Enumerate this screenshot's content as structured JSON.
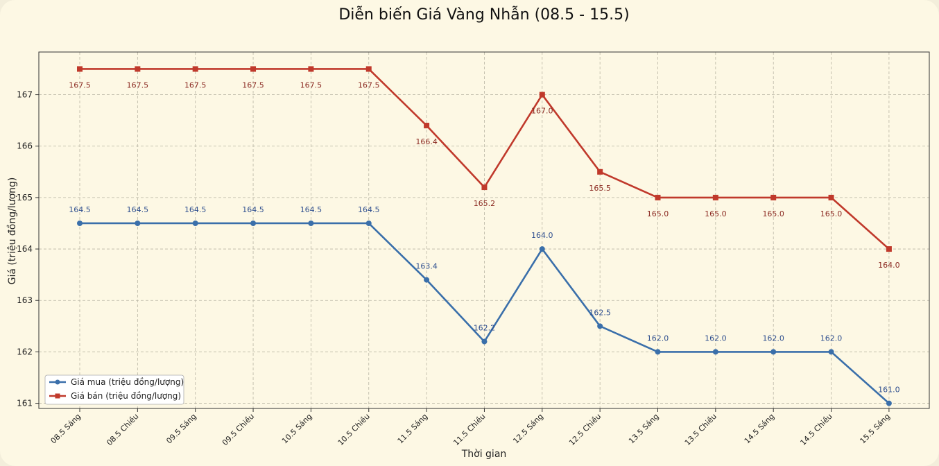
{
  "chart_data": {
    "type": "line",
    "title": "Diễn biến Giá Vàng Nhẫn (08.5 - 15.5)",
    "xlabel": "Thời gian",
    "ylabel": "Giá (triệu đồng/lượng)",
    "categories": [
      "08.5 Sáng",
      "08.5 Chiều",
      "09.5 Sáng",
      "09.5 Chiều",
      "10.5 Sáng",
      "10.5 Chiều",
      "11.5 Sáng",
      "11.5 Chiều",
      "12.5 Sáng",
      "12.5 Chiều",
      "13.5 Sáng",
      "13.5 Chiều",
      "14.5 Sáng",
      "14.5 Chiều",
      "15.5 Sáng"
    ],
    "yticks": [
      161,
      162,
      163,
      164,
      165,
      166,
      167
    ],
    "ylim": [
      160.9,
      167.83
    ],
    "grid": true,
    "legend_position": "lower-left",
    "series": [
      {
        "name": "Giá mua (triệu đồng/lượng)",
        "color": "#3a6faa",
        "marker": "circle",
        "values": [
          164.5,
          164.5,
          164.5,
          164.5,
          164.5,
          164.5,
          163.4,
          162.2,
          164.0,
          162.5,
          162.0,
          162.0,
          162.0,
          162.0,
          161.0
        ],
        "labels": [
          "164.5",
          "164.5",
          "164.5",
          "164.5",
          "164.5",
          "164.5",
          "163.4",
          "162.2",
          "164.0",
          "162.5",
          "162.0",
          "162.0",
          "162.0",
          "162.0",
          "161.0"
        ]
      },
      {
        "name": "Giá bán (triệu đồng/lượng)",
        "color": "#c0392b",
        "marker": "square",
        "values": [
          167.5,
          167.5,
          167.5,
          167.5,
          167.5,
          167.5,
          166.4,
          165.2,
          167.0,
          165.5,
          165.0,
          165.0,
          165.0,
          165.0,
          164.0
        ],
        "labels": [
          "167.5",
          "167.5",
          "167.5",
          "167.5",
          "167.5",
          "167.5",
          "166.4",
          "165.2",
          "167.0",
          "165.5",
          "165.0",
          "165.0",
          "165.0",
          "165.0",
          "164.0"
        ]
      }
    ]
  }
}
